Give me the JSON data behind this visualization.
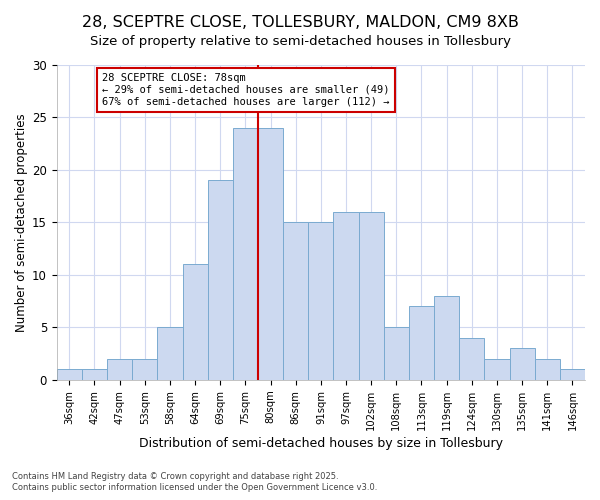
{
  "title": "28, SCEPTRE CLOSE, TOLLESBURY, MALDON, CM9 8XB",
  "subtitle": "Size of property relative to semi-detached houses in Tollesbury",
  "xlabel": "Distribution of semi-detached houses by size in Tollesbury",
  "ylabel": "Number of semi-detached properties",
  "bar_labels": [
    "36sqm",
    "42sqm",
    "47sqm",
    "53sqm",
    "58sqm",
    "64sqm",
    "69sqm",
    "75sqm",
    "80sqm",
    "86sqm",
    "91sqm",
    "97sqm",
    "102sqm",
    "108sqm",
    "113sqm",
    "119sqm",
    "124sqm",
    "130sqm",
    "135sqm",
    "141sqm",
    "146sqm"
  ],
  "bar_values": [
    1,
    1,
    2,
    2,
    5,
    11,
    19,
    24,
    24,
    15,
    15,
    16,
    16,
    5,
    7,
    8,
    4,
    2,
    3,
    2,
    1
  ],
  "bar_color": "#ccd9f0",
  "bar_edgecolor": "#7aaad0",
  "vline_x": 7.5,
  "vline_color": "#cc0000",
  "annotation_text": "28 SCEPTRE CLOSE: 78sqm\n← 29% of semi-detached houses are smaller (49)\n67% of semi-detached houses are larger (112) →",
  "annotation_box_color": "#cc0000",
  "annotation_text_color": "#000000",
  "annotation_bg": "#ffffff",
  "ylim": [
    0,
    30
  ],
  "yticks": [
    0,
    5,
    10,
    15,
    20,
    25,
    30
  ],
  "title_fontsize": 11.5,
  "subtitle_fontsize": 9.5,
  "xlabel_fontsize": 9,
  "ylabel_fontsize": 8.5,
  "footer_text": "Contains HM Land Registry data © Crown copyright and database right 2025.\nContains public sector information licensed under the Open Government Licence v3.0.",
  "bg_color": "#ffffff",
  "plot_bg_color": "#ffffff",
  "grid_color": "#d0d8f0"
}
